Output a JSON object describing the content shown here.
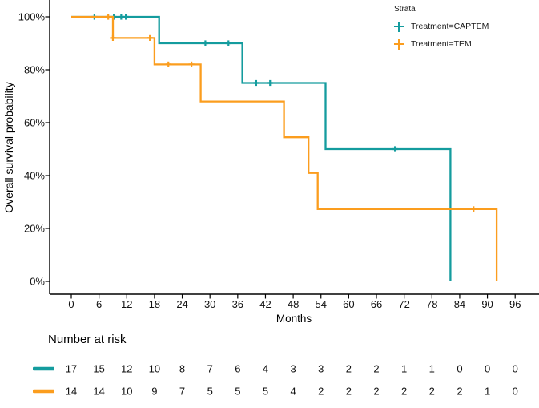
{
  "chart_data": {
    "type": "line",
    "subtype": "kaplan-meier-step-curves",
    "title": "",
    "xlabel": "Months",
    "ylabel": "Overall survival probability",
    "grid": false,
    "xlim": [
      0,
      101
    ],
    "ylim": [
      0,
      100
    ],
    "x_ticks": [
      0,
      6,
      12,
      18,
      24,
      30,
      36,
      42,
      48,
      54,
      60,
      66,
      72,
      78,
      84,
      90,
      96
    ],
    "y_ticks": [
      {
        "label": "0%",
        "value": 0
      },
      {
        "label": "20%",
        "value": 20
      },
      {
        "label": "40%",
        "value": 40
      },
      {
        "label": "60%",
        "value": 60
      },
      {
        "label": "80%",
        "value": 80
      },
      {
        "label": "100%",
        "value": 100
      }
    ],
    "legend": {
      "title": "Strata",
      "position": "top-right",
      "items": [
        {
          "label": "Treatment=CAPTEM",
          "color": "#149c9e"
        },
        {
          "label": "Treatment=TEM",
          "color": "#fb9d1e"
        }
      ]
    },
    "series": [
      {
        "name": "Treatment=CAPTEM",
        "color": "#149c9e",
        "steps": [
          [
            0,
            100
          ],
          [
            19,
            100
          ],
          [
            19,
            90
          ],
          [
            37,
            90
          ],
          [
            37,
            75
          ],
          [
            55,
            75
          ],
          [
            55,
            50
          ],
          [
            82,
            50
          ],
          [
            82,
            0
          ]
        ],
        "censor_marks": [
          [
            5,
            100
          ],
          [
            9.2,
            100
          ],
          [
            10.8,
            100
          ],
          [
            11.8,
            100
          ],
          [
            29,
            90
          ],
          [
            34,
            90
          ],
          [
            40,
            75
          ],
          [
            43,
            75
          ],
          [
            70,
            50
          ]
        ]
      },
      {
        "name": "Treatment=TEM",
        "color": "#fb9d1e",
        "steps": [
          [
            0,
            100
          ],
          [
            9,
            100
          ],
          [
            9,
            92
          ],
          [
            18,
            92
          ],
          [
            18,
            82
          ],
          [
            28,
            82
          ],
          [
            28,
            68
          ],
          [
            46,
            68
          ],
          [
            46,
            54.5
          ],
          [
            51.3,
            54.5
          ],
          [
            51.3,
            41
          ],
          [
            53.3,
            41
          ],
          [
            53.3,
            27.3
          ],
          [
            92,
            27.3
          ],
          [
            92,
            0
          ]
        ],
        "censor_marks": [
          [
            8,
            100
          ],
          [
            9,
            92
          ],
          [
            17,
            92
          ],
          [
            21,
            82
          ],
          [
            26,
            82
          ],
          [
            87,
            27.3
          ]
        ]
      }
    ],
    "risk_table": {
      "title": "Number at risk",
      "months": [
        0,
        6,
        12,
        18,
        24,
        30,
        36,
        42,
        48,
        54,
        60,
        66,
        72,
        78,
        84,
        90,
        96
      ],
      "rows": [
        {
          "name": "Treatment=CAPTEM",
          "color": "#149c9e",
          "values": [
            17,
            15,
            12,
            10,
            8,
            7,
            6,
            4,
            3,
            3,
            2,
            2,
            1,
            1,
            0,
            0,
            0
          ]
        },
        {
          "name": "Treatment=TEM",
          "color": "#fb9d1e",
          "values": [
            14,
            14,
            10,
            9,
            7,
            5,
            5,
            5,
            4,
            2,
            2,
            2,
            2,
            2,
            2,
            1,
            0
          ]
        }
      ]
    },
    "colors": {
      "axis": "#000000",
      "text": "#111111"
    }
  }
}
